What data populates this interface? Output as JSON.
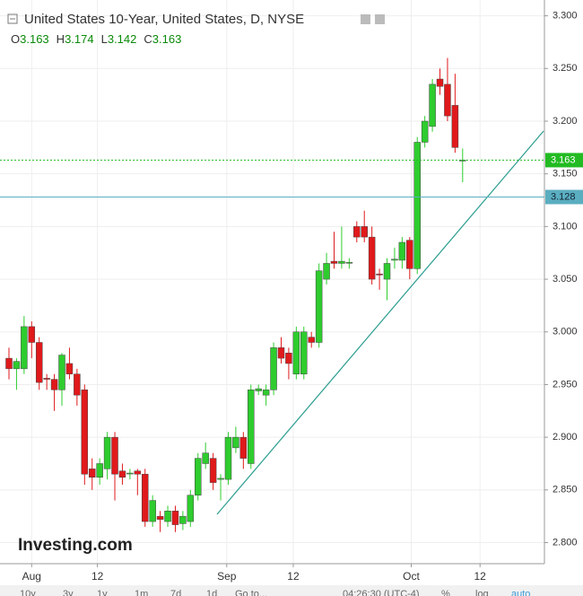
{
  "chart_data": {
    "type": "candlestick",
    "title": "United States 10-Year, United States, D, NYSE",
    "ohlc_legend": [
      {
        "label": "O",
        "value": 3.163
      },
      {
        "label": "H",
        "value": 3.174
      },
      {
        "label": "L",
        "value": 3.142
      },
      {
        "label": "C",
        "value": 3.163
      }
    ],
    "ohlc": [
      [
        2.975,
        2.985,
        2.955,
        2.965
      ],
      [
        2.965,
        2.975,
        2.945,
        2.972
      ],
      [
        2.965,
        3.015,
        2.96,
        3.005
      ],
      [
        3.005,
        3.01,
        2.975,
        2.99
      ],
      [
        2.99,
        2.995,
        2.945,
        2.952
      ],
      [
        2.956,
        2.96,
        2.945,
        2.955
      ],
      [
        2.955,
        2.96,
        2.925,
        2.945
      ],
      [
        2.945,
        2.98,
        2.93,
        2.978
      ],
      [
        2.97,
        2.985,
        2.955,
        2.96
      ],
      [
        2.96,
        2.965,
        2.93,
        2.94
      ],
      [
        2.945,
        2.95,
        2.855,
        2.865
      ],
      [
        2.87,
        2.88,
        2.85,
        2.862
      ],
      [
        2.862,
        2.88,
        2.855,
        2.875
      ],
      [
        2.87,
        2.905,
        2.86,
        2.9
      ],
      [
        2.9,
        2.905,
        2.84,
        2.865
      ],
      [
        2.868,
        2.875,
        2.855,
        2.862
      ],
      [
        2.866,
        2.87,
        2.86,
        2.866
      ],
      [
        2.868,
        2.87,
        2.845,
        2.865
      ],
      [
        2.865,
        2.87,
        2.815,
        2.82
      ],
      [
        2.82,
        2.845,
        2.815,
        2.84
      ],
      [
        2.825,
        2.83,
        2.81,
        2.822
      ],
      [
        2.82,
        2.835,
        2.815,
        2.83
      ],
      [
        2.83,
        2.835,
        2.81,
        2.817
      ],
      [
        2.818,
        2.83,
        2.812,
        2.825
      ],
      [
        2.82,
        2.85,
        2.815,
        2.845
      ],
      [
        2.845,
        2.885,
        2.84,
        2.88
      ],
      [
        2.875,
        2.895,
        2.87,
        2.885
      ],
      [
        2.88,
        2.885,
        2.85,
        2.857
      ],
      [
        2.86,
        2.865,
        2.84,
        2.861
      ],
      [
        2.86,
        2.905,
        2.855,
        2.9
      ],
      [
        2.89,
        2.91,
        2.885,
        2.9
      ],
      [
        2.9,
        2.905,
        2.87,
        2.88
      ],
      [
        2.875,
        2.95,
        2.87,
        2.945
      ],
      [
        2.944,
        2.95,
        2.94,
        2.946
      ],
      [
        2.94,
        2.95,
        2.93,
        2.945
      ],
      [
        2.945,
        2.99,
        2.94,
        2.985
      ],
      [
        2.985,
        2.995,
        2.97,
        2.975
      ],
      [
        2.98,
        2.985,
        2.955,
        2.97
      ],
      [
        2.96,
        3.005,
        2.955,
        3.0
      ],
      [
        2.96,
        3.005,
        2.955,
        3.0
      ],
      [
        2.995,
        3.0,
        2.985,
        2.99
      ],
      [
        2.99,
        3.065,
        2.985,
        3.058
      ],
      [
        3.05,
        3.075,
        3.045,
        3.065
      ],
      [
        3.067,
        3.095,
        3.06,
        3.065
      ],
      [
        3.065,
        3.1,
        3.06,
        3.067
      ],
      [
        3.066,
        3.07,
        3.06,
        3.066
      ],
      [
        3.1,
        3.105,
        3.085,
        3.09
      ],
      [
        3.1,
        3.115,
        3.085,
        3.09
      ],
      [
        3.09,
        3.1,
        3.045,
        3.05
      ],
      [
        3.055,
        3.06,
        3.04,
        3.054
      ],
      [
        3.05,
        3.07,
        3.03,
        3.065
      ],
      [
        3.068,
        3.08,
        3.06,
        3.069
      ],
      [
        3.068,
        3.09,
        3.06,
        3.085
      ],
      [
        3.087,
        3.09,
        3.05,
        3.06
      ],
      [
        3.06,
        3.185,
        3.055,
        3.18
      ],
      [
        3.18,
        3.205,
        3.175,
        3.2
      ],
      [
        3.195,
        3.24,
        3.19,
        3.235
      ],
      [
        3.24,
        3.25,
        3.225,
        3.233
      ],
      [
        3.235,
        3.26,
        3.2,
        3.205
      ],
      [
        3.215,
        3.245,
        3.17,
        3.175
      ],
      [
        3.163,
        3.174,
        3.142,
        3.163
      ]
    ],
    "up_color": "#2ecc2e",
    "down_color": "#e0191b",
    "ylim": [
      2.78,
      3.315
    ],
    "yticks": [
      {
        "value": 2.8,
        "label": "2.800"
      },
      {
        "value": 2.85,
        "label": "2.850"
      },
      {
        "value": 2.9,
        "label": "2.900"
      },
      {
        "value": 2.95,
        "label": "2.950"
      },
      {
        "value": 3.0,
        "label": "3.000"
      },
      {
        "value": 3.05,
        "label": "3.050"
      },
      {
        "value": 3.1,
        "label": "3.100"
      },
      {
        "value": 3.15,
        "label": "3.150"
      },
      {
        "value": 3.2,
        "label": "3.200"
      },
      {
        "value": 3.25,
        "label": "3.250"
      },
      {
        "value": 3.3,
        "label": "3.300"
      }
    ],
    "xticks": [
      {
        "value": 3,
        "label": "Aug"
      },
      {
        "value": 11.7,
        "label": "12"
      },
      {
        "value": 28.8,
        "label": "Sep"
      },
      {
        "value": 37.6,
        "label": "12"
      },
      {
        "value": 53.2,
        "label": "Oct"
      },
      {
        "value": 62.3,
        "label": "12"
      }
    ],
    "grid": true,
    "price_lines": [
      {
        "value": 3.163,
        "color": "#22bb22"
      },
      {
        "value": 3.128,
        "color": "#5aaec0"
      }
    ],
    "logo": "Investing.com",
    "toolbar": [
      "10y",
      "3y",
      "1y",
      "1m",
      "7d",
      "1d",
      "Go to...",
      "04:26:30 (UTC-4)",
      "%",
      "log",
      "auto"
    ]
  }
}
